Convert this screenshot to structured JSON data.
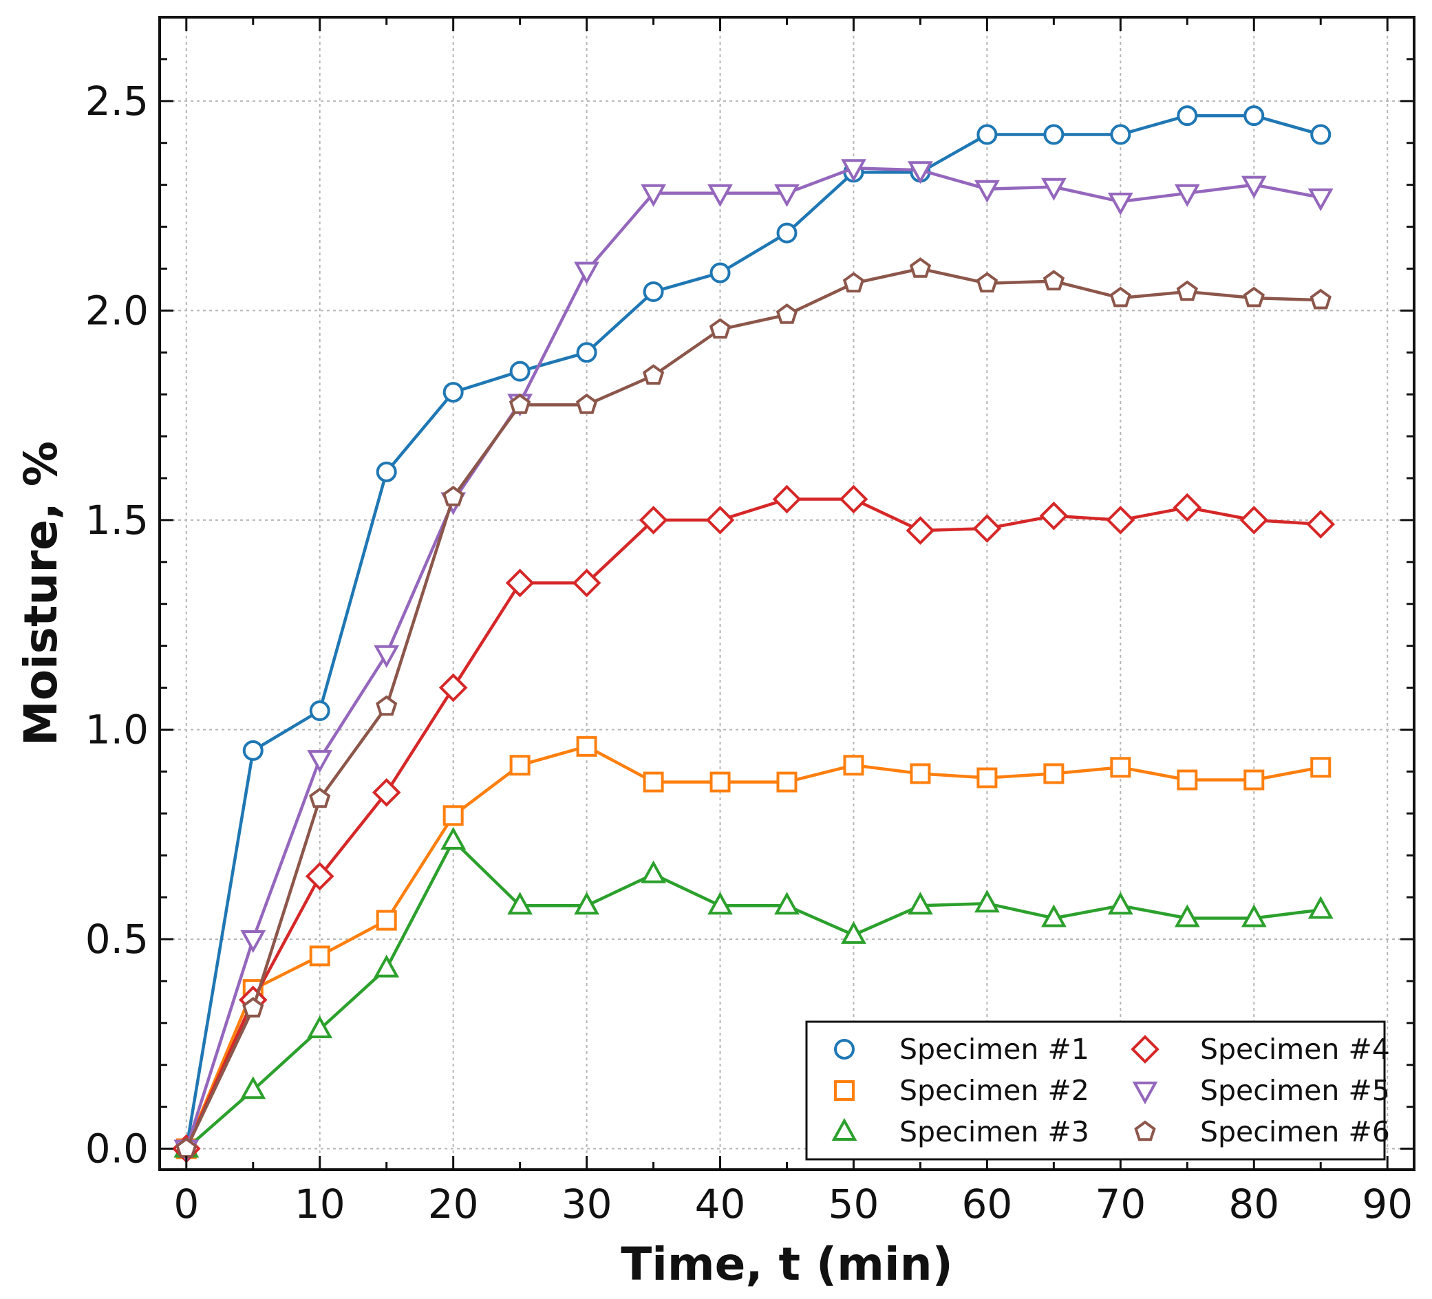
{
  "chart_data": {
    "type": "line",
    "xlabel": "Time, t (min)",
    "ylabel": "Moisture, %",
    "xlim": [
      -2,
      92
    ],
    "ylim": [
      -0.05,
      2.7
    ],
    "xticks": [
      0,
      10,
      20,
      30,
      40,
      50,
      60,
      70,
      80,
      90
    ],
    "xtick_labels": [
      "0",
      "10",
      "20",
      "30",
      "40",
      "50",
      "60",
      "70",
      "80",
      "90"
    ],
    "yticks": [
      0.0,
      0.5,
      1.0,
      1.5,
      2.0,
      2.5
    ],
    "ytick_labels": [
      "0.0",
      "0.5",
      "1.0",
      "1.5",
      "2.0",
      "2.5"
    ],
    "grid": true,
    "legend_position": "bottom-right",
    "x": [
      0,
      5,
      10,
      15,
      20,
      25,
      30,
      35,
      40,
      45,
      50,
      55,
      60,
      65,
      70,
      75,
      80,
      85
    ],
    "series": [
      {
        "name": "Specimen #1",
        "color": "#1f77b4",
        "marker": "circle",
        "values": [
          0.0,
          0.95,
          1.045,
          1.615,
          1.805,
          1.855,
          1.9,
          2.045,
          2.09,
          2.185,
          2.33,
          2.33,
          2.42,
          2.42,
          2.42,
          2.465,
          2.465,
          2.42
        ]
      },
      {
        "name": "Specimen #2",
        "color": "#ff7f0e",
        "marker": "square",
        "values": [
          0.0,
          0.38,
          0.46,
          0.545,
          0.795,
          0.915,
          0.96,
          0.875,
          0.875,
          0.875,
          0.915,
          0.895,
          0.885,
          0.895,
          0.91,
          0.88,
          0.88,
          0.91
        ]
      },
      {
        "name": "Specimen #3",
        "color": "#2ca02c",
        "marker": "triangle-up",
        "values": [
          0.0,
          0.14,
          0.285,
          0.43,
          0.735,
          0.58,
          0.58,
          0.655,
          0.58,
          0.58,
          0.51,
          0.58,
          0.585,
          0.55,
          0.58,
          0.55,
          0.55,
          0.57
        ]
      },
      {
        "name": "Specimen #4",
        "color": "#d62728",
        "marker": "diamond",
        "values": [
          0.0,
          0.355,
          0.65,
          0.85,
          1.1,
          1.35,
          1.35,
          1.5,
          1.5,
          1.55,
          1.55,
          1.475,
          1.48,
          1.51,
          1.5,
          1.53,
          1.5,
          1.49
        ]
      },
      {
        "name": "Specimen #5",
        "color": "#9467bd",
        "marker": "triangle-down",
        "values": [
          0.0,
          0.5,
          0.93,
          1.18,
          1.545,
          1.78,
          2.095,
          2.28,
          2.28,
          2.28,
          2.34,
          2.335,
          2.29,
          2.295,
          2.26,
          2.28,
          2.3,
          2.27
        ]
      },
      {
        "name": "Specimen #6",
        "color": "#8c564b",
        "marker": "pentagon",
        "values": [
          0.0,
          0.335,
          0.835,
          1.055,
          1.555,
          1.775,
          1.775,
          1.845,
          1.955,
          1.99,
          2.065,
          2.1,
          2.065,
          2.07,
          2.03,
          2.045,
          2.03,
          2.025
        ]
      }
    ]
  }
}
